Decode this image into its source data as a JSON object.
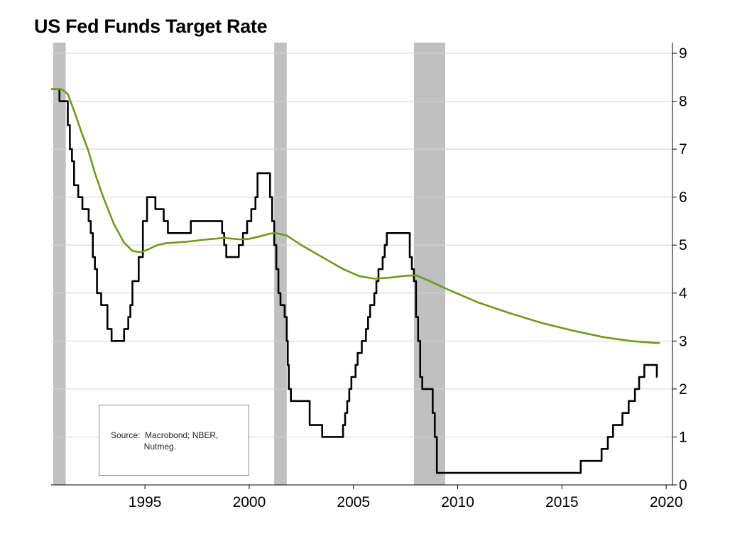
{
  "chart_data": {
    "type": "line",
    "title": "US Fed Funds Target Rate",
    "xlabel": "",
    "ylabel": "",
    "xlim": [
      1990.5,
      2020.3
    ],
    "ylim": [
      0,
      9
    ],
    "y_axis_position": "right",
    "x_ticks": [
      1995,
      2000,
      2005,
      2010,
      2015,
      2020
    ],
    "y_ticks": [
      0,
      1,
      2,
      3,
      4,
      5,
      6,
      7,
      8,
      9
    ],
    "grid": "horizontal",
    "recessions": [
      [
        1990.6,
        1991.2
      ],
      [
        2001.2,
        2001.8
      ],
      [
        2007.9,
        2009.4
      ]
    ],
    "series": [
      {
        "name": "",
        "color": "#000000",
        "style": "step",
        "points": [
          [
            1990.5,
            8.25
          ],
          [
            1990.9,
            8.0
          ],
          [
            1991.3,
            7.5
          ],
          [
            1991.4,
            7.0
          ],
          [
            1991.5,
            6.75
          ],
          [
            1991.6,
            6.25
          ],
          [
            1991.8,
            6.0
          ],
          [
            1992.0,
            5.75
          ],
          [
            1992.3,
            5.5
          ],
          [
            1992.4,
            5.25
          ],
          [
            1992.5,
            4.75
          ],
          [
            1992.6,
            4.5
          ],
          [
            1992.7,
            4.0
          ],
          [
            1992.9,
            3.75
          ],
          [
            1993.2,
            3.25
          ],
          [
            1993.4,
            3.0
          ],
          [
            1994.0,
            3.25
          ],
          [
            1994.2,
            3.5
          ],
          [
            1994.3,
            3.75
          ],
          [
            1994.4,
            4.25
          ],
          [
            1994.7,
            4.75
          ],
          [
            1994.9,
            5.5
          ],
          [
            1995.1,
            6.0
          ],
          [
            1995.5,
            5.75
          ],
          [
            1995.9,
            5.5
          ],
          [
            1996.1,
            5.25
          ],
          [
            1997.2,
            5.5
          ],
          [
            1998.7,
            5.25
          ],
          [
            1998.8,
            5.0
          ],
          [
            1998.9,
            4.75
          ],
          [
            1999.5,
            5.0
          ],
          [
            1999.7,
            5.25
          ],
          [
            1999.9,
            5.5
          ],
          [
            2000.1,
            5.75
          ],
          [
            2000.3,
            6.0
          ],
          [
            2000.4,
            6.5
          ],
          [
            2001.0,
            6.0
          ],
          [
            2001.1,
            5.5
          ],
          [
            2001.2,
            5.0
          ],
          [
            2001.3,
            4.5
          ],
          [
            2001.4,
            4.0
          ],
          [
            2001.5,
            3.75
          ],
          [
            2001.7,
            3.5
          ],
          [
            2001.8,
            3.0
          ],
          [
            2001.85,
            2.5
          ],
          [
            2001.9,
            2.0
          ],
          [
            2002.0,
            1.75
          ],
          [
            2002.9,
            1.25
          ],
          [
            2003.5,
            1.0
          ],
          [
            2004.5,
            1.25
          ],
          [
            2004.6,
            1.5
          ],
          [
            2004.7,
            1.75
          ],
          [
            2004.8,
            2.0
          ],
          [
            2004.9,
            2.25
          ],
          [
            2005.1,
            2.5
          ],
          [
            2005.2,
            2.75
          ],
          [
            2005.4,
            3.0
          ],
          [
            2005.6,
            3.25
          ],
          [
            2005.7,
            3.5
          ],
          [
            2005.8,
            3.75
          ],
          [
            2006.0,
            4.0
          ],
          [
            2006.1,
            4.25
          ],
          [
            2006.2,
            4.5
          ],
          [
            2006.4,
            4.75
          ],
          [
            2006.5,
            5.0
          ],
          [
            2006.6,
            5.25
          ],
          [
            2007.7,
            4.75
          ],
          [
            2007.8,
            4.5
          ],
          [
            2007.9,
            4.25
          ],
          [
            2008.0,
            3.5
          ],
          [
            2008.1,
            3.0
          ],
          [
            2008.2,
            2.25
          ],
          [
            2008.3,
            2.0
          ],
          [
            2008.8,
            1.5
          ],
          [
            2008.9,
            1.0
          ],
          [
            2009.0,
            0.25
          ],
          [
            2015.9,
            0.5
          ],
          [
            2016.9,
            0.75
          ],
          [
            2017.2,
            1.0
          ],
          [
            2017.45,
            1.25
          ],
          [
            2017.9,
            1.5
          ],
          [
            2018.2,
            1.75
          ],
          [
            2018.5,
            2.0
          ],
          [
            2018.7,
            2.25
          ],
          [
            2018.95,
            2.5
          ],
          [
            2019.55,
            2.25
          ],
          [
            2019.57,
            2.25
          ]
        ]
      },
      {
        "name": "",
        "color": "#6e9a1e",
        "style": "smooth",
        "points": [
          [
            1990.5,
            8.25
          ],
          [
            1991.0,
            8.25
          ],
          [
            1991.3,
            8.15
          ],
          [
            1991.6,
            7.8
          ],
          [
            1992.0,
            7.3
          ],
          [
            1992.3,
            6.95
          ],
          [
            1992.6,
            6.5
          ],
          [
            1993.0,
            6.0
          ],
          [
            1993.5,
            5.45
          ],
          [
            1994.0,
            5.05
          ],
          [
            1994.4,
            4.88
          ],
          [
            1994.8,
            4.85
          ],
          [
            1995.2,
            4.92
          ],
          [
            1995.6,
            5.0
          ],
          [
            1996.0,
            5.04
          ],
          [
            1997.0,
            5.07
          ],
          [
            1998.0,
            5.12
          ],
          [
            1998.8,
            5.15
          ],
          [
            1999.5,
            5.12
          ],
          [
            2000.0,
            5.13
          ],
          [
            2000.5,
            5.18
          ],
          [
            2001.0,
            5.24
          ],
          [
            2001.3,
            5.25
          ],
          [
            2001.8,
            5.2
          ],
          [
            2002.5,
            5.0
          ],
          [
            2003.5,
            4.75
          ],
          [
            2004.5,
            4.5
          ],
          [
            2005.3,
            4.35
          ],
          [
            2006.0,
            4.3
          ],
          [
            2006.7,
            4.32
          ],
          [
            2007.5,
            4.36
          ],
          [
            2008.0,
            4.37
          ],
          [
            2008.5,
            4.28
          ],
          [
            2009.5,
            4.08
          ],
          [
            2011.0,
            3.8
          ],
          [
            2012.5,
            3.58
          ],
          [
            2014.0,
            3.38
          ],
          [
            2015.5,
            3.22
          ],
          [
            2017.0,
            3.08
          ],
          [
            2018.3,
            3.0
          ],
          [
            2019.5,
            2.96
          ],
          [
            2019.7,
            2.96
          ]
        ]
      }
    ],
    "annotations": [
      {
        "text": "Source:  Macrobond; NBER,\n              Nutmeg."
      }
    ]
  }
}
